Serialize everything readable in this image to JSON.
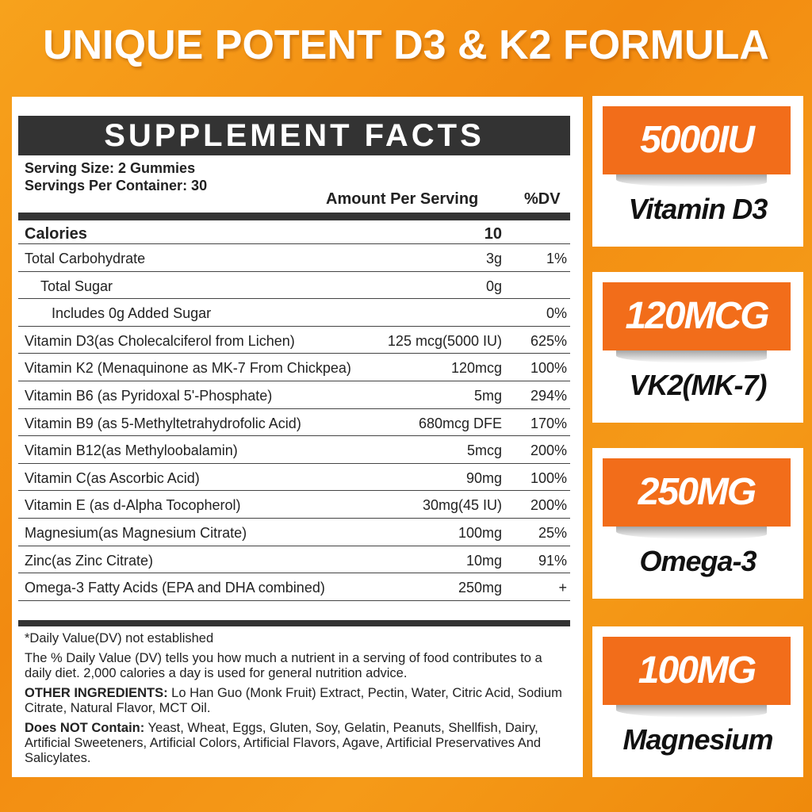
{
  "headline": "UNIQUE POTENT D3 & K2 FORMULA",
  "facts": {
    "title": "SUPPLEMENT FACTS",
    "serving_size": "Serving Size: 2 Gummies",
    "servings_per_container": "Servings Per Container: 30",
    "amount_header": "Amount Per Serving",
    "dv_header": "%DV",
    "rows": [
      {
        "name": "Calories",
        "amount": "10",
        "dv": ""
      },
      {
        "name": "Total Carbohydrate",
        "amount": "3g",
        "dv": "1%"
      },
      {
        "name": "Total Sugar",
        "amount": "0g",
        "dv": ""
      },
      {
        "name": "Includes 0g Added Sugar",
        "amount": "",
        "dv": "0%"
      },
      {
        "name": "Vitamin D3(as Cholecalciferol from Lichen)",
        "amount": "125 mcg(5000 IU)",
        "dv": "625%"
      },
      {
        "name": "Vitamin K2 (Menaquinone as MK-7 From Chickpea)",
        "amount": "120mcg",
        "dv": "100%"
      },
      {
        "name": "Vitamin B6 (as Pyridoxal 5'-Phosphate)",
        "amount": "5mg",
        "dv": "294%"
      },
      {
        "name": "Vitamin B9 (as 5-Methyltetrahydrofolic Acid)",
        "amount": "680mcg DFE",
        "dv": "170%"
      },
      {
        "name": "Vitamin B12(as Methyloobalamin)",
        "amount": "5mcg",
        "dv": "200%"
      },
      {
        "name": "Vitamin C(as Ascorbic Acid)",
        "amount": "90mg",
        "dv": "100%"
      },
      {
        "name": "Vitamin E (as d-Alpha Tocopherol)",
        "amount": "30mg(45 IU)",
        "dv": "200%"
      },
      {
        "name": "Magnesium(as Magnesium Citrate)",
        "amount": "100mg",
        "dv": "25%"
      },
      {
        "name": "Zinc(as Zinc Citrate)",
        "amount": "10mg",
        "dv": "91%"
      },
      {
        "name": "Omega-3 Fatty Acids (EPA and DHA combined)",
        "amount": "250mg",
        "dv": "+"
      }
    ],
    "dv_note": "*Daily Value(DV) not established",
    "dv_explain": "The % Daily Value (DV) tells you how much a nutrient in a serving of food contributes to a daily diet. 2,000 calories a day is used for general nutrition advice.",
    "other_label": "OTHER INGREDIENTS:",
    "other_text": " Lo Han Guo (Monk Fruit) Extract, Pectin, Water, Citric Acid, Sodium Citrate, Natural Flavor, MCT Oil.",
    "not_label": "Does NOT Contain:",
    "not_text": " Yeast, Wheat, Eggs, Gluten, Soy, Gelatin, Peanuts, Shellfish, Dairy, Artificial Sweeteners, Artificial Colors, Artificial Flavors, Agave, Artificial Preservatives And Salicylates."
  },
  "cards": [
    {
      "amount": "5000IU",
      "label": "Vitamin D3"
    },
    {
      "amount": "120MCG",
      "label": "VK2(MK-7)"
    },
    {
      "amount": "250MG",
      "label": "Omega-3"
    },
    {
      "amount": "100MG",
      "label": "Magnesium"
    }
  ],
  "colors": {
    "background": "#f59a18",
    "accent": "#f26d1a",
    "header_bar": "#333333"
  }
}
